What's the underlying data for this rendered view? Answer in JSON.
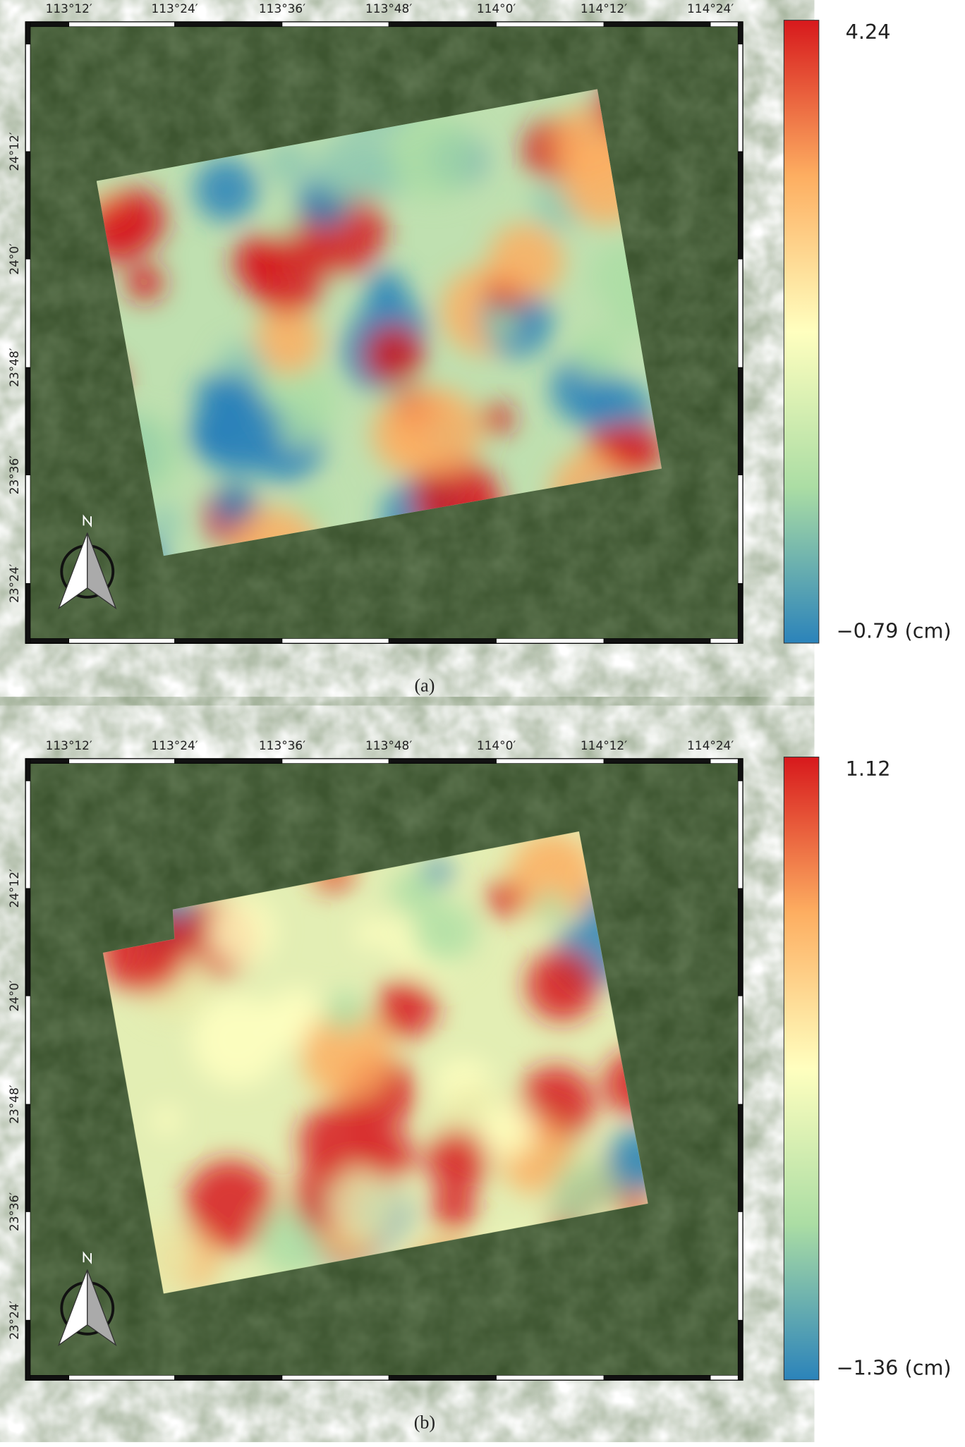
{
  "panels": [
    {
      "caption": "(a)",
      "lon_ticks": [
        "113°12′",
        "113°24′",
        "113°36′",
        "113°48′",
        "114°0′",
        "114°12′",
        "114°24′"
      ],
      "lat_ticks": [
        "24°12′",
        "24°0′",
        "23°48′",
        "23°36′",
        "23°24′"
      ],
      "colorbar": {
        "max_label": "4.24",
        "min_label": "−0.79 (cm)"
      }
    },
    {
      "caption": "(b)",
      "lon_ticks": [
        "113°12′",
        "113°24′",
        "113°36′",
        "113°48′",
        "114°0′",
        "114°12′",
        "114°24′"
      ],
      "lat_ticks": [
        "24°12′",
        "24°0′",
        "23°48′",
        "23°36′",
        "23°24′"
      ],
      "colorbar": {
        "max_label": "1.12",
        "min_label": "−1.36 (cm)"
      }
    }
  ]
}
